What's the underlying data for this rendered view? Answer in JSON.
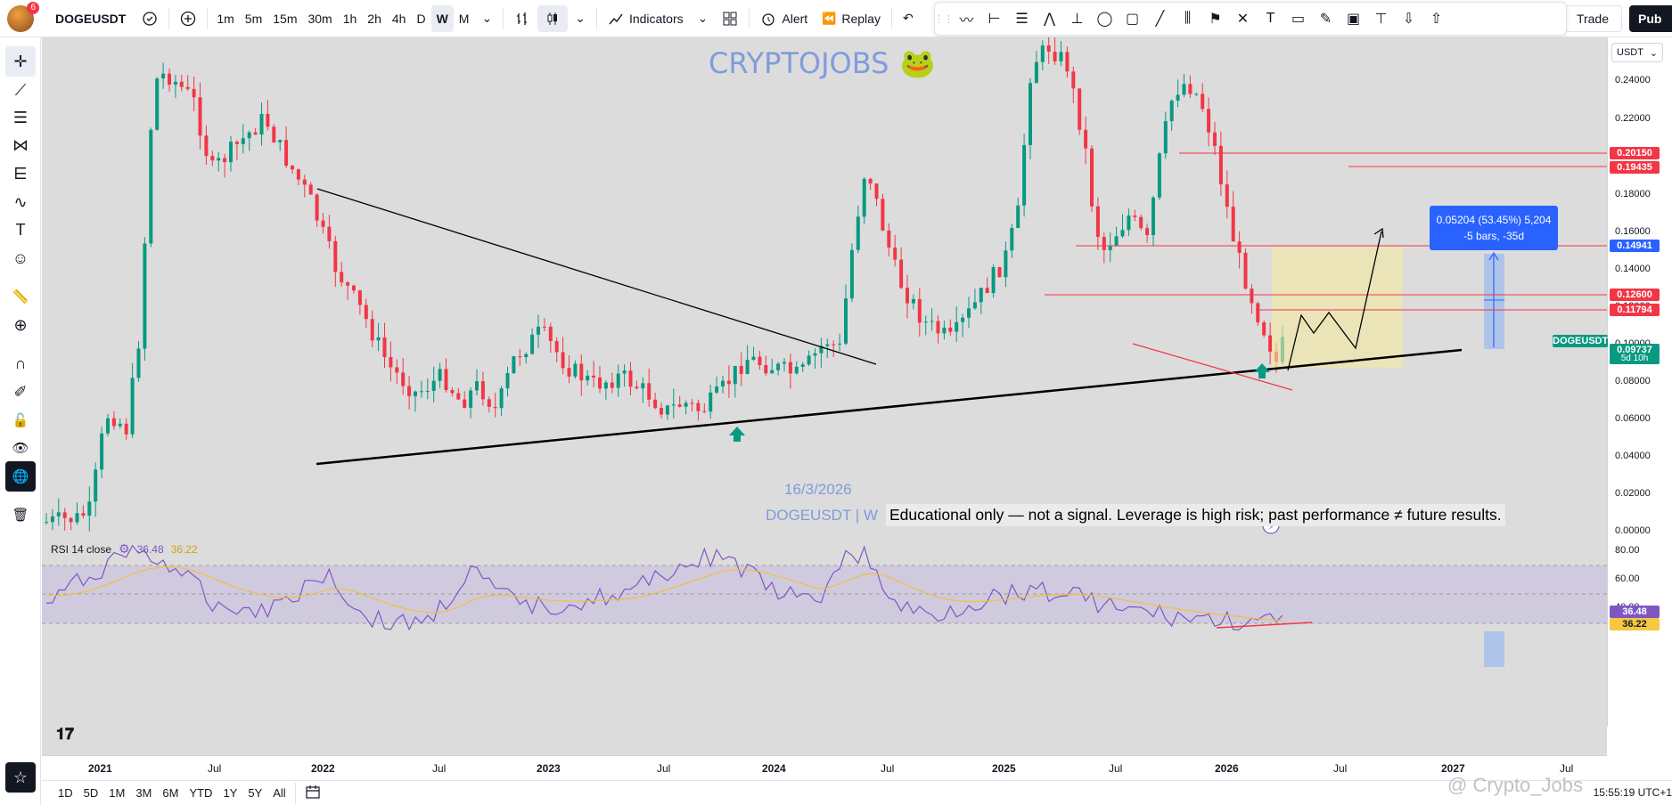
{
  "header": {
    "avatar_badge": "6",
    "symbol": "DOGEUSDT",
    "timeframes": [
      "1m",
      "5m",
      "15m",
      "30m",
      "1h",
      "2h",
      "4h",
      "D",
      "W",
      "M"
    ],
    "active_timeframe": "W",
    "indicators_label": "Indicators",
    "alert_label": "Alert",
    "replay_label": "Replay",
    "trade_label": "Trade",
    "publish_label": "Pub"
  },
  "drawing_toolbar": {
    "icons": [
      "grip-icon",
      "brush-line-icon",
      "range-measure-icon",
      "fib-channel-icon",
      "wave-pattern-icon",
      "date-range-icon",
      "circle-icon",
      "rectangle-icon",
      "ray-icon",
      "candles-icon",
      "flag-icon",
      "cross-icon",
      "text-icon",
      "comment-icon",
      "pen-icon",
      "image-icon",
      "text-box-icon",
      "arrow-down-icon",
      "arrow-up-icon"
    ]
  },
  "left_toolbar": {
    "icons": [
      "crosshair-icon",
      "trend-line-icon",
      "fib-retracement-icon",
      "pattern-icon",
      "forecast-icon",
      "brush-icon",
      "text-tool-icon",
      "emoji-icon",
      "ruler-icon",
      "zoom-icon",
      "magnet-icon",
      "lock-drawing-icon",
      "lock-icon",
      "eye-icon",
      "globe-icon",
      "trash-icon",
      "watchlist-star-icon"
    ]
  },
  "chart": {
    "watermark_title": "CRYPTOJOBS",
    "watermark_emoji": "🐸",
    "date_stamp": "16/3/2026",
    "symbol_stamp": "DOGEUSDT | W",
    "disclaimer": "Educational only — not a signal. Leverage is high risk; past performance ≠ future results.",
    "measure_line1": "0.05204 (53.45%) 5,204",
    "measure_line2": "-5 bars, -35d",
    "rsi_label": "RSI 14 close",
    "rsi_value1": "36.48",
    "rsi_value2": "36.22",
    "currency": "USDT",
    "colors": {
      "up": "#089981",
      "down": "#f23645",
      "rsi": "#7e57c2",
      "rsi_ma": "#f0c040"
    }
  },
  "price_scale": {
    "ticks": [
      "0.24000",
      "0.22000",
      "0.20000",
      "0.18000",
      "0.16000",
      "0.14000",
      "0.12000",
      "0.10000",
      "0.08000",
      "0.06000",
      "0.04000",
      "0.02000",
      "0.00000"
    ],
    "rsi_ticks": [
      "80.00",
      "60.00",
      "40.00"
    ],
    "labels": [
      {
        "text": "0.20150",
        "style": "red"
      },
      {
        "text": "0.19435",
        "style": "red"
      },
      {
        "text": "0.14941",
        "style": "blue"
      },
      {
        "text": "0.12600",
        "style": "red"
      },
      {
        "text": "0.11794",
        "style": "red"
      },
      {
        "text": "DOGEUSDT",
        "style": "green"
      },
      {
        "text": "0.09737",
        "style": "green"
      },
      {
        "text": "5d 10h",
        "style": "green"
      },
      {
        "text": "36.48",
        "style": "purple"
      },
      {
        "text": "36.22",
        "style": "yellow"
      }
    ]
  },
  "time_axis": {
    "labels": [
      {
        "text": "2021",
        "year": true
      },
      {
        "text": "Jul",
        "year": false
      },
      {
        "text": "2022",
        "year": true
      },
      {
        "text": "Jul",
        "year": false
      },
      {
        "text": "2023",
        "year": true
      },
      {
        "text": "Jul",
        "year": false
      },
      {
        "text": "2024",
        "year": true
      },
      {
        "text": "Jul",
        "year": false
      },
      {
        "text": "2025",
        "year": true
      },
      {
        "text": "Jul",
        "year": false
      },
      {
        "text": "2026",
        "year": true
      },
      {
        "text": "Jul",
        "year": false
      },
      {
        "text": "2027",
        "year": true
      },
      {
        "text": "Jul",
        "year": false
      }
    ]
  },
  "bottom_bar": {
    "ranges": [
      "1D",
      "5D",
      "1M",
      "3M",
      "6M",
      "YTD",
      "1Y",
      "5Y",
      "All"
    ],
    "clock": "15:55:19 UTC+1",
    "watermark": "@ Crypto_Jobs"
  }
}
